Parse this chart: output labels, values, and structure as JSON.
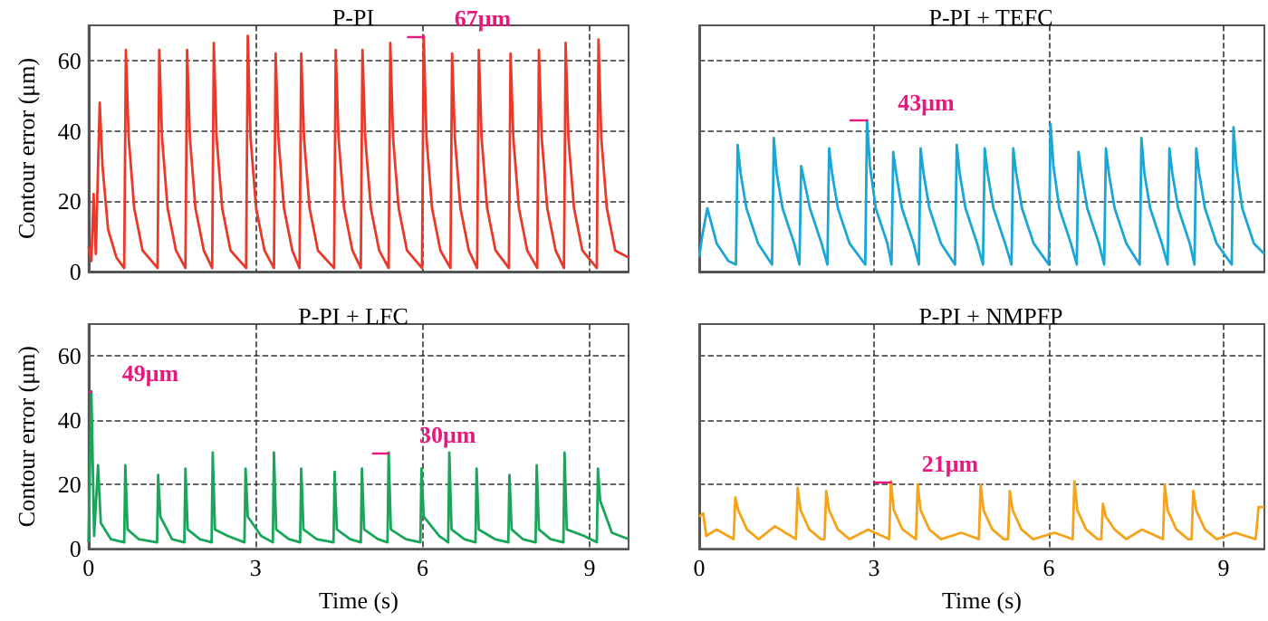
{
  "chart_data": [
    {
      "type": "line",
      "title": "P-PI",
      "ylabel": "Contour error (μm)",
      "xlim": [
        0,
        9.7
      ],
      "ylim": [
        0,
        70
      ],
      "xticks": [
        0,
        3,
        6,
        9
      ],
      "yticks": [
        0,
        20,
        40,
        60
      ],
      "grid": true,
      "tick_labels": "y",
      "marker": "none",
      "annotations": [
        {
          "text": "67μm",
          "x": 6.02,
          "y": 67
        }
      ],
      "series": [
        {
          "color": "#e8392a",
          "x": [
            0,
            0.05,
            0.09,
            0.13,
            0.2,
            0.25,
            0.35,
            0.5,
            0.64,
            0.67,
            0.72,
            0.82,
            0.97,
            1.24,
            1.27,
            1.32,
            1.42,
            1.57,
            1.74,
            1.77,
            1.82,
            1.92,
            2.07,
            2.22,
            2.25,
            2.3,
            2.4,
            2.55,
            2.83,
            2.86,
            2.91,
            3.01,
            3.16,
            3.33,
            3.36,
            3.41,
            3.51,
            3.66,
            3.79,
            3.82,
            3.87,
            3.97,
            4.12,
            4.41,
            4.44,
            4.49,
            4.59,
            4.74,
            4.89,
            4.92,
            4.97,
            5.07,
            5.22,
            5.39,
            5.42,
            5.47,
            5.57,
            5.72,
            5.99,
            6.02,
            6.07,
            6.17,
            6.32,
            6.5,
            6.53,
            6.58,
            6.68,
            6.83,
            6.98,
            7.01,
            7.06,
            7.16,
            7.31,
            7.55,
            7.58,
            7.63,
            7.73,
            7.88,
            8.06,
            8.09,
            8.14,
            8.24,
            8.39,
            8.54,
            8.57,
            8.62,
            8.72,
            8.87,
            9.13,
            9.16,
            9.21,
            9.31,
            9.46,
            9.7
          ],
          "values": [
            7,
            3,
            22,
            5,
            48,
            30,
            12,
            4,
            1,
            63,
            38,
            18,
            6,
            1,
            63,
            38,
            18,
            6,
            1,
            63,
            38,
            18,
            6,
            1,
            65,
            38,
            18,
            6,
            1,
            67,
            38,
            18,
            6,
            1,
            62,
            38,
            18,
            6,
            1,
            62,
            38,
            18,
            6,
            1,
            63,
            38,
            18,
            6,
            1,
            63,
            38,
            18,
            6,
            1,
            65,
            38,
            18,
            6,
            1,
            67,
            38,
            18,
            6,
            1,
            62,
            38,
            18,
            6,
            1,
            63,
            38,
            18,
            6,
            1,
            62,
            38,
            18,
            6,
            1,
            63,
            38,
            18,
            6,
            1,
            65,
            38,
            18,
            6,
            1,
            66,
            38,
            18,
            6,
            4
          ]
        }
      ]
    },
    {
      "type": "line",
      "title": "P-PI + TEFC",
      "xlim": [
        0,
        9.7
      ],
      "ylim": [
        0,
        70
      ],
      "xticks": [
        0,
        3,
        6,
        9
      ],
      "yticks": [
        0,
        20,
        40,
        60
      ],
      "grid": true,
      "tick_labels": false,
      "marker": "none",
      "annotations": [
        {
          "text": "43μm",
          "x": 2.88,
          "y": 43
        }
      ],
      "series": [
        {
          "color": "#1ba6d6",
          "x": [
            0,
            0.05,
            0.14,
            0.3,
            0.5,
            0.63,
            0.66,
            0.71,
            0.81,
            1.01,
            1.25,
            1.28,
            1.33,
            1.43,
            1.63,
            1.72,
            1.75,
            1.8,
            1.9,
            2.1,
            2.2,
            2.23,
            2.28,
            2.38,
            2.58,
            2.85,
            2.88,
            2.93,
            3.03,
            3.23,
            3.3,
            3.33,
            3.38,
            3.48,
            3.68,
            3.77,
            3.8,
            3.85,
            3.95,
            4.15,
            4.39,
            4.42,
            4.47,
            4.57,
            4.77,
            4.87,
            4.9,
            4.95,
            5.05,
            5.25,
            5.36,
            5.39,
            5.44,
            5.54,
            5.74,
            6.0,
            6.03,
            6.08,
            6.18,
            6.38,
            6.48,
            6.51,
            6.56,
            6.66,
            6.86,
            6.95,
            6.98,
            7.03,
            7.13,
            7.33,
            7.56,
            7.59,
            7.64,
            7.74,
            7.94,
            8.04,
            8.07,
            8.12,
            8.22,
            8.42,
            8.5,
            8.53,
            8.58,
            8.68,
            8.88,
            9.14,
            9.17,
            9.22,
            9.32,
            9.52,
            9.7
          ],
          "values": [
            4,
            10,
            18,
            8,
            3,
            2,
            36,
            28,
            18,
            8,
            2,
            38,
            28,
            18,
            8,
            2,
            30,
            26,
            18,
            8,
            2,
            35,
            28,
            18,
            8,
            2,
            43,
            30,
            18,
            8,
            2,
            34,
            28,
            18,
            8,
            2,
            35,
            28,
            18,
            8,
            2,
            36,
            28,
            18,
            8,
            2,
            35,
            28,
            18,
            8,
            2,
            35,
            28,
            18,
            8,
            2,
            42,
            30,
            18,
            8,
            2,
            34,
            28,
            18,
            8,
            2,
            35,
            28,
            18,
            8,
            2,
            38,
            28,
            18,
            8,
            2,
            35,
            28,
            18,
            8,
            2,
            35,
            28,
            18,
            8,
            2,
            41,
            30,
            18,
            8,
            5
          ]
        }
      ]
    },
    {
      "type": "line",
      "title": "P-PI + LFC",
      "xlabel": "Time (s)",
      "ylabel": "Contour error (μm)",
      "xlim": [
        0,
        9.7
      ],
      "ylim": [
        0,
        70
      ],
      "xticks": [
        0,
        3,
        6,
        9
      ],
      "yticks": [
        0,
        20,
        40,
        60
      ],
      "grid": true,
      "marker": "none",
      "annotations": [
        {
          "text": "49μm",
          "x": 0.05,
          "y": 49
        },
        {
          "text": "30μm",
          "x": 5.39,
          "y": 30
        }
      ],
      "series": [
        {
          "color": "#1aa65a",
          "x": [
            0,
            0.05,
            0.1,
            0.17,
            0.22,
            0.4,
            0.64,
            0.66,
            0.7,
            0.9,
            1.23,
            1.25,
            1.29,
            1.5,
            1.72,
            1.74,
            1.78,
            2.0,
            2.21,
            2.23,
            2.27,
            2.5,
            2.8,
            2.82,
            2.86,
            3.1,
            3.31,
            3.33,
            3.37,
            3.6,
            3.8,
            3.82,
            3.86,
            4.1,
            4.4,
            4.42,
            4.46,
            4.7,
            4.89,
            4.91,
            4.95,
            5.2,
            5.37,
            5.39,
            5.43,
            5.7,
            5.96,
            5.98,
            6.02,
            6.3,
            6.46,
            6.48,
            6.52,
            6.75,
            6.95,
            6.97,
            7.01,
            7.3,
            7.54,
            7.56,
            7.6,
            7.8,
            8.03,
            8.05,
            8.09,
            8.3,
            8.53,
            8.55,
            8.59,
            8.9,
            9.13,
            9.15,
            9.19,
            9.4,
            9.7
          ],
          "values": [
            2,
            49,
            4,
            26,
            8,
            3,
            2,
            26,
            6,
            3,
            2,
            23,
            10,
            3,
            2,
            25,
            6,
            3,
            2,
            30,
            6,
            4,
            2,
            25,
            10,
            4,
            2,
            30,
            6,
            3,
            2,
            25,
            6,
            3,
            2,
            24,
            6,
            3,
            2,
            25,
            6,
            3,
            2,
            30,
            6,
            3,
            2,
            25,
            10,
            4,
            2,
            30,
            6,
            3,
            2,
            25,
            6,
            3,
            2,
            23,
            6,
            3,
            2,
            26,
            6,
            3,
            2,
            30,
            6,
            4,
            2,
            25,
            15,
            5,
            3
          ]
        }
      ]
    },
    {
      "type": "line",
      "title": "P-PI + NMPFP",
      "xlabel": "Time (s)",
      "xlim": [
        0,
        9.7
      ],
      "ylim": [
        0,
        70
      ],
      "xticks": [
        0,
        3,
        6,
        9
      ],
      "yticks": [
        0,
        20,
        40,
        60
      ],
      "grid": true,
      "tick_labels": "x",
      "marker": "none",
      "annotations": [
        {
          "text": "21μm",
          "x": 3.29,
          "y": 21
        }
      ],
      "series": [
        {
          "color": "#f5a31a",
          "x": [
            0,
            0.07,
            0.12,
            0.3,
            0.59,
            0.62,
            0.67,
            0.82,
            1.02,
            1.3,
            1.66,
            1.69,
            1.74,
            1.89,
            2.09,
            2.15,
            2.18,
            2.23,
            2.38,
            2.58,
            2.9,
            3.26,
            3.29,
            3.34,
            3.49,
            3.72,
            3.75,
            3.8,
            3.95,
            4.15,
            4.5,
            4.8,
            4.83,
            4.88,
            5.03,
            5.23,
            5.3,
            5.33,
            5.38,
            5.53,
            5.73,
            6.1,
            6.41,
            6.44,
            6.49,
            6.64,
            6.84,
            6.9,
            6.93,
            6.98,
            7.13,
            7.33,
            7.6,
            7.96,
            7.99,
            8.04,
            8.19,
            8.39,
            8.45,
            8.48,
            8.53,
            8.68,
            8.88,
            9.2,
            9.55,
            9.6,
            9.7
          ],
          "values": [
            10,
            11,
            4,
            6,
            3,
            16,
            12,
            6,
            3,
            7,
            3,
            19,
            12,
            6,
            3,
            3,
            18,
            12,
            6,
            3,
            6,
            3,
            21,
            12,
            6,
            3,
            20,
            12,
            6,
            3,
            5,
            3,
            20,
            12,
            6,
            3,
            3,
            18,
            12,
            6,
            3,
            5,
            3,
            21,
            12,
            6,
            3,
            3,
            14,
            10,
            6,
            3,
            6,
            3,
            20,
            12,
            6,
            3,
            3,
            18,
            12,
            6,
            3,
            5,
            3,
            13,
            13
          ]
        }
      ]
    }
  ]
}
